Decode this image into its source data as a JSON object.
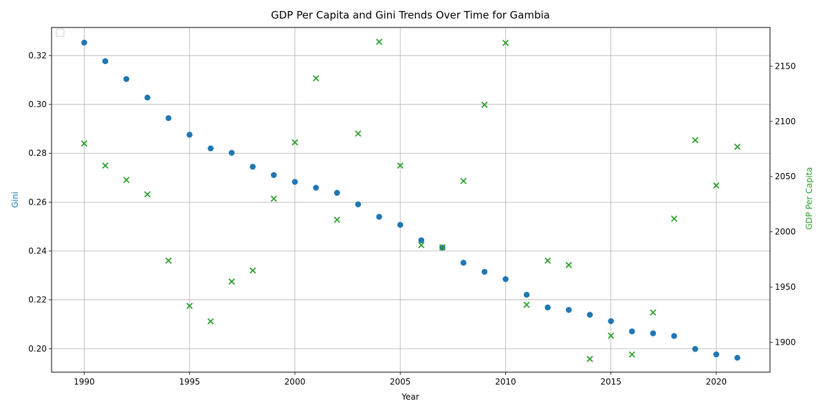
{
  "chart_data": {
    "type": "scatter",
    "title": "GDP Per Capita and Gini Trends Over Time for Gambia",
    "xlabel": "Year",
    "ylabel_left": "Gini",
    "ylabel_right": "GDP Per Capita",
    "xlim": [
      1988.45,
      2022.55
    ],
    "ylim_left": [
      0.1904,
      0.3315
    ],
    "ylim_right": [
      1873,
      2185
    ],
    "x_ticks": [
      1990,
      1995,
      2000,
      2005,
      2010,
      2015,
      2020
    ],
    "y_ticks_left": [
      0.2,
      0.22,
      0.24,
      0.26,
      0.28,
      0.3,
      0.32
    ],
    "y_ticks_right": [
      1900,
      1950,
      2000,
      2050,
      2100,
      2150
    ],
    "grid": true,
    "legend": "top-left",
    "colors": {
      "gini": "#1f77b4",
      "gdp": "#2ca02c",
      "grid": "#b0b0b0"
    },
    "series": [
      {
        "axis": "left",
        "marker": "circle",
        "x": [
          1990,
          1991,
          1992,
          1993,
          1994,
          1995,
          1996,
          1997,
          1998,
          1999,
          2000,
          2001,
          2002,
          2003,
          2004,
          2005,
          2006,
          2007,
          2008,
          2009,
          2010,
          2011,
          2012,
          2013,
          2014,
          2015,
          2016,
          2017,
          2018,
          2019,
          2020,
          2021
        ],
        "values": [
          0.3253,
          0.3177,
          0.3104,
          0.3028,
          0.2944,
          0.2876,
          0.282,
          0.2802,
          0.2745,
          0.2711,
          0.2683,
          0.2659,
          0.2638,
          0.2591,
          0.254,
          0.2507,
          0.2444,
          0.2414,
          0.2352,
          0.2315,
          0.2285,
          0.2221,
          0.2169,
          0.2159,
          0.2139,
          0.2113,
          0.2071,
          0.2063,
          0.2052,
          0.1999,
          0.1977,
          0.1963
        ]
      },
      {
        "axis": "right",
        "marker": "x",
        "x": [
          1990,
          1991,
          1992,
          1993,
          1994,
          1995,
          1996,
          1997,
          1998,
          1999,
          2000,
          2001,
          2002,
          2003,
          2004,
          2005,
          2006,
          2007,
          2008,
          2009,
          2010,
          2011,
          2012,
          2013,
          2014,
          2015,
          2016,
          2017,
          2018,
          2019,
          2020,
          2021
        ],
        "values": [
          2080,
          2060,
          2047,
          2034,
          1974,
          1933,
          1919,
          1955,
          1965,
          2030,
          2081,
          2139,
          2011,
          2089,
          2172,
          2060,
          1988,
          1986,
          2046,
          2115,
          2171,
          1934,
          1974,
          1970,
          1885,
          1906,
          1889,
          1927,
          2012,
          2083,
          2042,
          2077
        ]
      }
    ]
  }
}
